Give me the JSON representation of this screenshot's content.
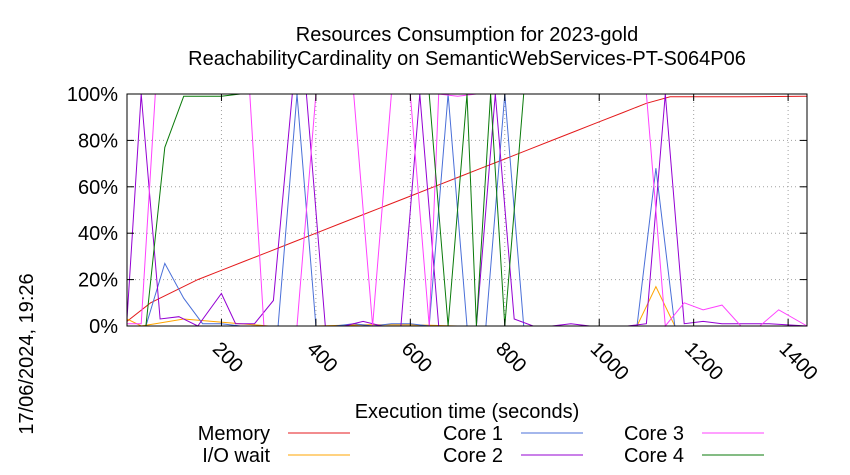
{
  "title": [
    "Resources Consumption for 2023-gold",
    "ReachabilityCardinality on SemanticWebServices-PT-S064P06"
  ],
  "timestamp": "17/06/2024, 19:26",
  "chart_data": {
    "type": "line",
    "title": "Resources Consumption for 2023-gold ReachabilityCardinality on SemanticWebServices-PT-S064P06",
    "xlabel": "Execution time (seconds)",
    "ylabel": "",
    "xlim": [
      0,
      1440
    ],
    "ylim": [
      0,
      100
    ],
    "x_ticks": [
      200,
      400,
      600,
      800,
      1000,
      1200,
      1400
    ],
    "x_tick_labels": [
      "200",
      "400",
      "600",
      "800",
      "1000",
      "1200",
      "1400"
    ],
    "y_ticks": [
      0,
      20,
      40,
      60,
      80,
      100
    ],
    "y_tick_labels": [
      "0%",
      "20%",
      "40%",
      "60%",
      "80%",
      "100%"
    ],
    "grid": true,
    "legend_position": "bottom",
    "series": [
      {
        "name": "Memory",
        "color": "#e41a1c",
        "points": [
          [
            0,
            2
          ],
          [
            50,
            10
          ],
          [
            100,
            15
          ],
          [
            150,
            20
          ],
          [
            200,
            24
          ],
          [
            250,
            28
          ],
          [
            300,
            32
          ],
          [
            350,
            36
          ],
          [
            400,
            40
          ],
          [
            450,
            44
          ],
          [
            500,
            48
          ],
          [
            550,
            52
          ],
          [
            600,
            56
          ],
          [
            650,
            60
          ],
          [
            700,
            64
          ],
          [
            750,
            68
          ],
          [
            800,
            72
          ],
          [
            850,
            76
          ],
          [
            900,
            80
          ],
          [
            950,
            84
          ],
          [
            1000,
            88
          ],
          [
            1050,
            92
          ],
          [
            1100,
            96
          ],
          [
            1150,
            98.8
          ],
          [
            1200,
            98.8
          ],
          [
            1300,
            98.8
          ],
          [
            1440,
            99
          ]
        ]
      },
      {
        "name": "I/O wait",
        "color": "#ffa500",
        "points": [
          [
            0,
            3
          ],
          [
            30,
            0
          ],
          [
            60,
            1
          ],
          [
            120,
            3
          ],
          [
            180,
            2
          ],
          [
            240,
            1
          ],
          [
            300,
            0
          ],
          [
            400,
            0
          ],
          [
            500,
            0.5
          ],
          [
            600,
            0.5
          ],
          [
            700,
            0
          ],
          [
            800,
            0
          ],
          [
            900,
            0
          ],
          [
            1000,
            0
          ],
          [
            1080,
            0
          ],
          [
            1120,
            17
          ],
          [
            1160,
            0
          ],
          [
            1220,
            0
          ],
          [
            1300,
            0
          ],
          [
            1440,
            0
          ]
        ]
      },
      {
        "name": "Core 1",
        "color": "#4a6fd8",
        "points": [
          [
            0,
            0
          ],
          [
            40,
            0
          ],
          [
            80,
            27
          ],
          [
            120,
            12
          ],
          [
            160,
            1
          ],
          [
            200,
            1
          ],
          [
            240,
            0
          ],
          [
            280,
            0
          ],
          [
            320,
            0
          ],
          [
            360,
            100
          ],
          [
            400,
            0
          ],
          [
            440,
            0
          ],
          [
            480,
            1
          ],
          [
            520,
            0
          ],
          [
            560,
            1
          ],
          [
            600,
            1
          ],
          [
            640,
            0
          ],
          [
            680,
            100
          ],
          [
            720,
            0
          ],
          [
            760,
            0
          ],
          [
            800,
            100
          ],
          [
            840,
            0
          ],
          [
            880,
            0
          ],
          [
            920,
            0
          ],
          [
            960,
            0
          ],
          [
            1000,
            0
          ],
          [
            1040,
            0
          ],
          [
            1080,
            0
          ],
          [
            1120,
            68
          ],
          [
            1160,
            0
          ],
          [
            1200,
            0
          ],
          [
            1240,
            0
          ],
          [
            1280,
            0
          ],
          [
            1320,
            0
          ],
          [
            1360,
            0
          ],
          [
            1400,
            0
          ],
          [
            1440,
            0
          ]
        ]
      },
      {
        "name": "Core 2",
        "color": "#9400d3",
        "points": [
          [
            0,
            3
          ],
          [
            30,
            100
          ],
          [
            70,
            3
          ],
          [
            110,
            4
          ],
          [
            150,
            0
          ],
          [
            200,
            14
          ],
          [
            230,
            1
          ],
          [
            270,
            1
          ],
          [
            310,
            11
          ],
          [
            350,
            100
          ],
          [
            380,
            100
          ],
          [
            420,
            0
          ],
          [
            460,
            0
          ],
          [
            500,
            2
          ],
          [
            540,
            0
          ],
          [
            580,
            0
          ],
          [
            620,
            100
          ],
          [
            660,
            0
          ],
          [
            700,
            0
          ],
          [
            740,
            0
          ],
          [
            780,
            100
          ],
          [
            820,
            3
          ],
          [
            860,
            0
          ],
          [
            900,
            0
          ],
          [
            940,
            1
          ],
          [
            980,
            0
          ],
          [
            1020,
            0
          ],
          [
            1060,
            0
          ],
          [
            1100,
            1
          ],
          [
            1140,
            100
          ],
          [
            1180,
            1
          ],
          [
            1220,
            2
          ],
          [
            1260,
            1
          ],
          [
            1300,
            1
          ],
          [
            1360,
            1
          ],
          [
            1440,
            0
          ]
        ]
      },
      {
        "name": "Core 3",
        "color": "#ff40ff",
        "points": [
          [
            0,
            1
          ],
          [
            30,
            1
          ],
          [
            60,
            100
          ],
          [
            100,
            100
          ],
          [
            140,
            100
          ],
          [
            180,
            100
          ],
          [
            220,
            100
          ],
          [
            260,
            100
          ],
          [
            290,
            0
          ],
          [
            330,
            0
          ],
          [
            360,
            0
          ],
          [
            400,
            100
          ],
          [
            440,
            100
          ],
          [
            480,
            100
          ],
          [
            520,
            0
          ],
          [
            560,
            100
          ],
          [
            600,
            100
          ],
          [
            640,
            0
          ],
          [
            660,
            100
          ],
          [
            700,
            99
          ],
          [
            740,
            100
          ],
          [
            780,
            100
          ],
          [
            820,
            100
          ],
          [
            860,
            100
          ],
          [
            900,
            100
          ],
          [
            940,
            100
          ],
          [
            980,
            100
          ],
          [
            1020,
            100
          ],
          [
            1060,
            100
          ],
          [
            1100,
            100
          ],
          [
            1140,
            0
          ],
          [
            1180,
            10
          ],
          [
            1220,
            7
          ],
          [
            1260,
            9
          ],
          [
            1300,
            0
          ],
          [
            1340,
            0
          ],
          [
            1380,
            7
          ],
          [
            1440,
            0
          ]
        ]
      },
      {
        "name": "Core 4",
        "color": "#0a7a0a",
        "points": [
          [
            0,
            0
          ],
          [
            40,
            0
          ],
          [
            80,
            77
          ],
          [
            120,
            99
          ],
          [
            160,
            99
          ],
          [
            200,
            99
          ],
          [
            240,
            100
          ],
          [
            280,
            100
          ],
          [
            320,
            100
          ],
          [
            360,
            100
          ],
          [
            400,
            100
          ],
          [
            440,
            100
          ],
          [
            480,
            100
          ],
          [
            520,
            100
          ],
          [
            560,
            100
          ],
          [
            600,
            100
          ],
          [
            640,
            100
          ],
          [
            680,
            0
          ],
          [
            720,
            100
          ],
          [
            740,
            0
          ],
          [
            770,
            100
          ],
          [
            800,
            0
          ],
          [
            840,
            100
          ],
          [
            880,
            100
          ],
          [
            920,
            100
          ],
          [
            960,
            100
          ],
          [
            1000,
            100
          ],
          [
            1040,
            100
          ],
          [
            1080,
            100
          ],
          [
            1120,
            100
          ],
          [
            1160,
            100
          ],
          [
            1200,
            100
          ],
          [
            1300,
            100
          ],
          [
            1400,
            100
          ],
          [
            1440,
            100
          ]
        ]
      }
    ]
  }
}
